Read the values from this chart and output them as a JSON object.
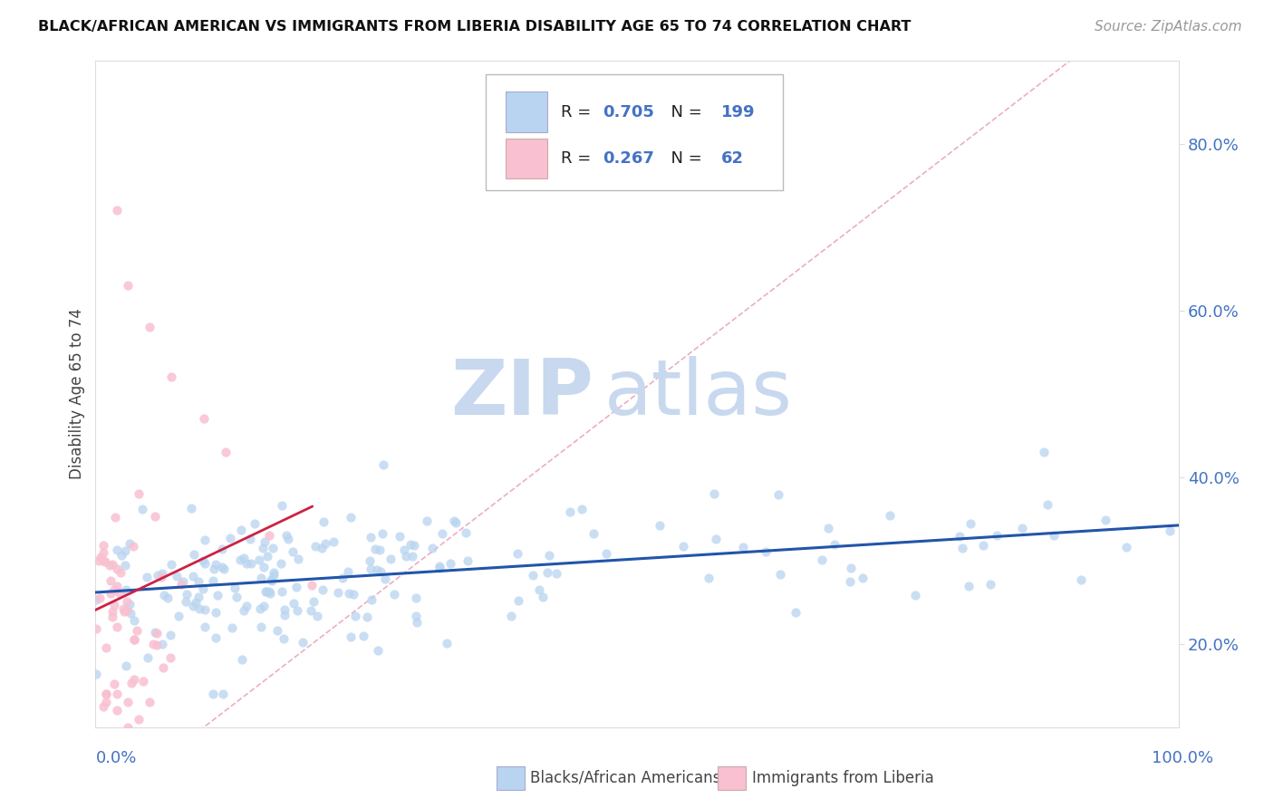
{
  "title": "BLACK/AFRICAN AMERICAN VS IMMIGRANTS FROM LIBERIA DISABILITY AGE 65 TO 74 CORRELATION CHART",
  "source": "Source: ZipAtlas.com",
  "ylabel": "Disability Age 65 to 74",
  "y_tick_labels": [
    "20.0%",
    "40.0%",
    "60.0%",
    "80.0%"
  ],
  "y_tick_values": [
    0.2,
    0.4,
    0.6,
    0.8
  ],
  "series1_label": "Blacks/African Americans",
  "series1_face_color": "#b8d4f0",
  "series1_edge_color": "#7aaad8",
  "series1_line_color": "#2255aa",
  "series1_R": "0.705",
  "series1_N": "199",
  "series2_label": "Immigrants from Liberia",
  "series2_face_color": "#f8c0d0",
  "series2_edge_color": "#e888a8",
  "series2_line_color": "#cc2244",
  "series2_R": "0.267",
  "series2_N": "62",
  "legend_text_color": "#4472c4",
  "legend_label_color": "#222222",
  "watermark_zip": "ZIP",
  "watermark_atlas": "atlas",
  "watermark_color": "#c8d8ee",
  "background_color": "#ffffff",
  "grid_color": "#cccccc",
  "ref_line_color": "#e8a0b8",
  "xlim": [
    0.0,
    1.0
  ],
  "ylim": [
    0.1,
    0.9
  ],
  "plot_ylim_data": [
    0.15,
    0.88
  ]
}
